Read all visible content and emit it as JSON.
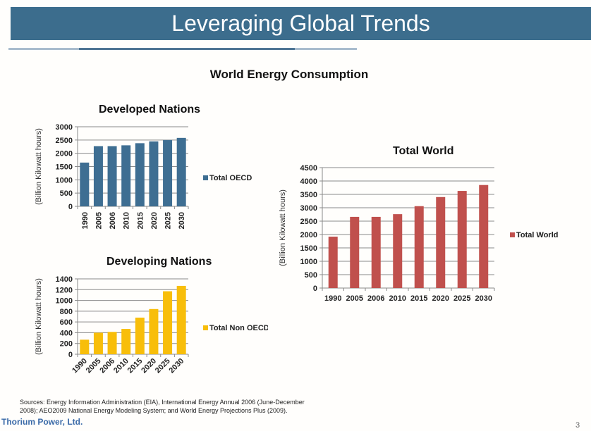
{
  "slide": {
    "title": "Leveraging Global Trends",
    "subtitle": "World Energy Consumption",
    "sources_line1": "Sources: Energy Information Administration (EIA), International Energy Annual 2006 (June-December",
    "sources_line2": "2008); AEO2009 National Energy Modeling System; and World Energy Projections Plus (2009).",
    "brand": "Thorium Power, Ltd.",
    "page_number": "3",
    "colors": {
      "header": "#3c6d8d",
      "brand": "#3a6aa8"
    }
  },
  "chart_data": [
    {
      "id": "developed",
      "type": "bar",
      "title": "Developed Nations",
      "xlabel": "",
      "ylabel": "(Billion Kilowatt hours)",
      "categories": [
        "1990",
        "2005",
        "2006",
        "2010",
        "2015",
        "2020",
        "2025",
        "2030"
      ],
      "series": [
        {
          "name": "Total OECD",
          "color": "#3e6e92",
          "values": [
            1650,
            2270,
            2270,
            2300,
            2380,
            2450,
            2500,
            2580
          ]
        }
      ],
      "ylim": [
        0,
        3000
      ],
      "yticks": [
        0,
        500,
        1000,
        1500,
        2000,
        2500,
        3000
      ],
      "grid": true,
      "legend": "right",
      "xtick_rotation": "vertical"
    },
    {
      "id": "developing",
      "type": "bar",
      "title": "Developing Nations",
      "xlabel": "",
      "ylabel": "(Billion Kilowatt hours)",
      "categories": [
        "1990",
        "2005",
        "2006",
        "2010",
        "2015",
        "2020",
        "2025",
        "2030"
      ],
      "series": [
        {
          "name": "Total Non OECD",
          "color": "#f8be0a",
          "values": [
            270,
            400,
            415,
            470,
            680,
            840,
            1170,
            1270
          ]
        }
      ],
      "ylim": [
        0,
        1400
      ],
      "yticks": [
        0,
        200,
        400,
        600,
        800,
        1000,
        1200,
        1400
      ],
      "grid": true,
      "legend": "right",
      "xtick_rotation": "diagonal"
    },
    {
      "id": "world",
      "type": "bar",
      "title": "Total World",
      "xlabel": "",
      "ylabel": "(Billion Kilowatt hours)",
      "categories": [
        "1990",
        "2005",
        "2006",
        "2010",
        "2015",
        "2020",
        "2025",
        "2030"
      ],
      "series": [
        {
          "name": "Total World",
          "color": "#c0504d",
          "values": [
            1920,
            2660,
            2660,
            2760,
            3060,
            3400,
            3630,
            3850
          ]
        }
      ],
      "ylim": [
        0,
        4500
      ],
      "yticks": [
        0,
        500,
        1000,
        1500,
        2000,
        2500,
        3000,
        3500,
        4000,
        4500
      ],
      "grid": true,
      "legend": "right",
      "xtick_rotation": "horizontal"
    }
  ]
}
